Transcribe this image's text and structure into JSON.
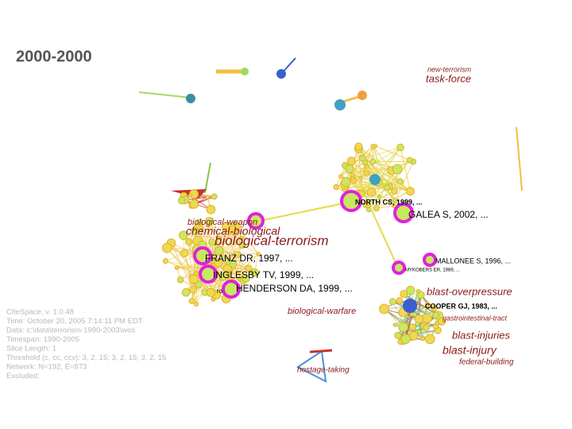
{
  "title": "2000-2000",
  "cluster_labels": [
    "new-terrorism",
    "task-force",
    "biological-weapon",
    "chemical-biological",
    "biological-terrorism",
    "biological-warfare",
    "blast-overpressure",
    "gastrointestinal-tract",
    "blast-injuries",
    "blast-injury",
    "federal-building",
    "hostage-taking"
  ],
  "node_labels": [
    "NORTH CS, 1999, ...",
    "GALEA S, 2002, ...",
    "FRANZ DR, 1997, ...",
    "INGLESBY TV, 1999, ...",
    "HENDERSON DA, 1999, ...",
    "MALLONEE S, 1996, ...",
    "MYKOBERS ER, 1989, ...",
    "COOPER GJ, 1983, ...",
    "ro"
  ],
  "info": [
    "CiteSpace, v. 1.0.48",
    "Time: October 20, 2005 7:14:11 PM EDT",
    "Data: c:\\data\\terrorism-1990-2003\\wos",
    "Timespan: 1990-2005",
    "Slice Length: 1",
    "Threshold (c, cc, ccv): 3, 2, 15; 3, 2, 15; 3, 2, 15",
    "Network: N=192, E=873",
    "Excluded:"
  ]
}
